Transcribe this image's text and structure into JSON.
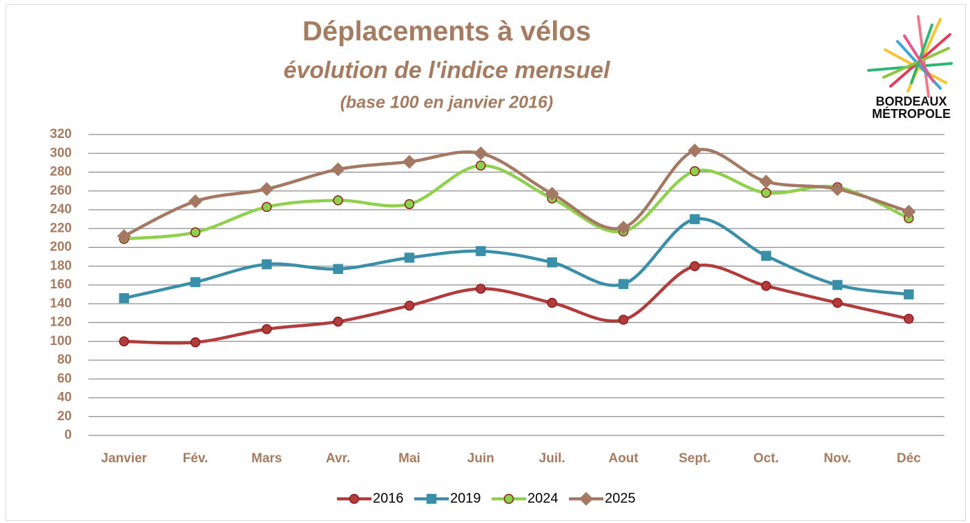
{
  "chart_data": {
    "type": "line",
    "title": "Déplacements à vélos",
    "subtitle": "évolution de l'indice mensuel",
    "note": "(base 100 en janvier 2016)",
    "logo": [
      "BORDEAUX",
      "MÉTROPOLE"
    ],
    "categories": [
      "Janvier",
      "Fév.",
      "Mars",
      "Avr.",
      "Mai",
      "Juin",
      "Juil.",
      "Aout",
      "Sept.",
      "Oct.",
      "Nov.",
      "Déc"
    ],
    "series": [
      {
        "name": "2016",
        "color": "#b23b3b",
        "marker": "circle",
        "values": [
          100,
          99,
          113,
          121,
          138,
          156,
          141,
          123,
          180,
          159,
          141,
          124
        ]
      },
      {
        "name": "2019",
        "color": "#3a8fa8",
        "marker": "square",
        "values": [
          146,
          163,
          182,
          177,
          189,
          196,
          184,
          161,
          230,
          191,
          160,
          150
        ]
      },
      {
        "name": "2024",
        "color": "#8fd14f",
        "marker": "circle",
        "values": [
          209,
          216,
          243,
          250,
          246,
          287,
          252,
          217,
          281,
          258,
          264,
          231
        ]
      },
      {
        "name": "2025",
        "color": "#a47862",
        "marker": "diamond",
        "values": [
          212,
          249,
          262,
          283,
          291,
          300,
          257,
          221,
          303,
          270,
          262,
          238
        ]
      }
    ],
    "ylim": [
      0,
      320
    ],
    "yticks": [
      0,
      20,
      40,
      60,
      80,
      100,
      120,
      140,
      160,
      180,
      200,
      220,
      240,
      260,
      280,
      300,
      320
    ],
    "grid": true,
    "smooth": true,
    "legend": "bottom"
  }
}
